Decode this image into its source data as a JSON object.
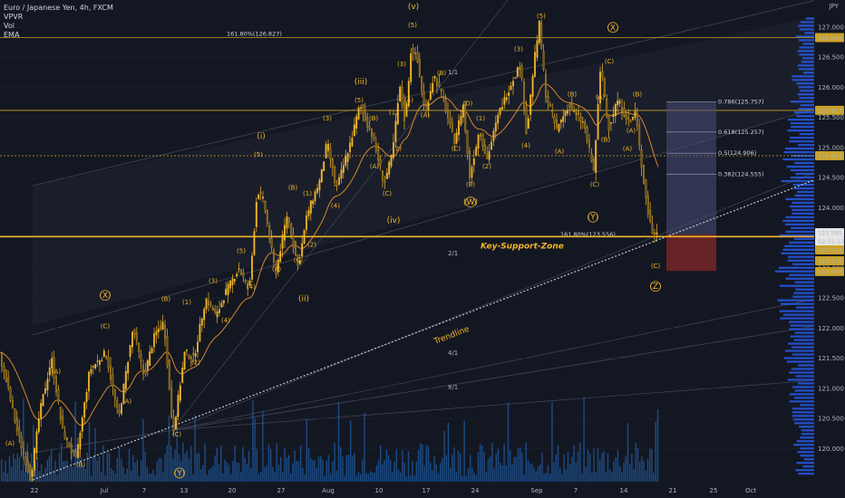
{
  "legend": {
    "symbol": "Euro / Japanese Yen, 4h, FXCM",
    "indicators": [
      "VPVR",
      "Vol",
      "EMA"
    ]
  },
  "currency": "JPY",
  "colors": {
    "background": "#131722",
    "candle": "#f0b429",
    "volume": "#1f5fa8",
    "profile": "#2962ff",
    "ema": "#d4882a",
    "trendline": "#c8c8c8",
    "support": "#f0b429"
  },
  "chart_data": {
    "type": "candlestick",
    "ylim": [
      119.45,
      127.3
    ],
    "y_ticks": [
      120.0,
      120.5,
      121.0,
      121.5,
      122.0,
      122.5,
      123.0,
      123.5,
      124.0,
      124.5,
      125.0,
      125.5,
      126.0,
      126.5,
      127.0
    ],
    "x_ticks": [
      "22",
      "Jul",
      "7",
      "13",
      "20",
      "27",
      "Aug",
      "10",
      "17",
      "24",
      "Sep",
      "7",
      "14",
      "21",
      "25",
      "Oct"
    ],
    "price_tags": [
      {
        "label": "126.826",
        "value": 126.826,
        "style": "gold"
      },
      {
        "label": "125.617",
        "value": 125.617,
        "style": "gold"
      },
      {
        "label": "124.864",
        "value": 124.864,
        "style": "gold"
      },
      {
        "label": "123.621",
        "value": 123.621,
        "style": "plain"
      },
      {
        "label": "123.585",
        "value": 123.585,
        "style": "white"
      },
      {
        "label": "02:55:13",
        "value": 123.44,
        "style": "white"
      },
      {
        "label": "123.523",
        "value": 123.3,
        "style": "gold"
      },
      {
        "label": "123.376",
        "value": 123.12,
        "style": "gold"
      },
      {
        "label": "122.968",
        "value": 122.94,
        "style": "gold"
      }
    ],
    "horizontal_lines": [
      {
        "value": 126.826,
        "label": "161.80%(126.827)"
      },
      {
        "value": 125.617,
        "label": ""
      },
      {
        "value": 124.864,
        "label": ""
      }
    ],
    "support_zone": {
      "value": 123.52,
      "label": "Key-Support-Zone"
    },
    "trendline_label": "Trendline",
    "fib_levels": [
      {
        "label": "0.786(125.757)",
        "value": 125.757
      },
      {
        "label": "0.618(125.257)",
        "value": 125.257
      },
      {
        "label": "0.5(124.906)",
        "value": 124.906
      },
      {
        "label": "0.382(124.555)",
        "value": 124.555
      }
    ],
    "ext_label": "161.80%(123.556)",
    "fan_labels": [
      "1/1",
      "2/1",
      "4/1",
      "8/1"
    ],
    "wave_labels": [
      {
        "t": "(A)",
        "x": 62,
        "p": 121.25
      },
      {
        "t": "(C)",
        "x": 116,
        "p": 122.0
      },
      {
        "t": "(X)",
        "x": 116,
        "p": 122.5,
        "big": 1
      },
      {
        "t": "(A)",
        "x": 140,
        "p": 120.75
      },
      {
        "t": "(B)",
        "x": 183,
        "p": 122.45
      },
      {
        "t": "(C)",
        "x": 195,
        "p": 120.2
      },
      {
        "t": "(Y)",
        "x": 198,
        "p": 119.55,
        "big": 1
      },
      {
        "t": "(B)",
        "x": 89,
        "p": 119.7
      },
      {
        "t": "(A)",
        "x": 11,
        "p": 120.05
      },
      {
        "t": "(1)",
        "x": 206,
        "p": 122.4
      },
      {
        "t": "(2)",
        "x": 216,
        "p": 121.4
      },
      {
        "t": "(3)",
        "x": 235,
        "p": 122.75
      },
      {
        "t": "(4)",
        "x": 249,
        "p": 122.1
      },
      {
        "t": "(5)",
        "x": 266,
        "p": 123.25
      },
      {
        "t": "(4)",
        "x": 277,
        "p": 122.65
      },
      {
        "t": "(5)",
        "x": 285,
        "p": 124.85
      },
      {
        "t": "(i)",
        "x": 288,
        "p": 125.15,
        "big": 1
      },
      {
        "t": "(A)",
        "x": 305,
        "p": 122.95
      },
      {
        "t": "(B)",
        "x": 323,
        "p": 124.3
      },
      {
        "t": "(C)",
        "x": 329,
        "p": 123.1
      },
      {
        "t": "(ii)",
        "x": 335,
        "p": 122.45,
        "big": 1
      },
      {
        "t": "(1)",
        "x": 339,
        "p": 124.2
      },
      {
        "t": "(2)",
        "x": 344,
        "p": 123.35
      },
      {
        "t": "(3)",
        "x": 361,
        "p": 125.45
      },
      {
        "t": "(4)",
        "x": 370,
        "p": 124.0
      },
      {
        "t": "(5)",
        "x": 396,
        "p": 125.75
      },
      {
        "t": "(iii)",
        "x": 398,
        "p": 126.05,
        "big": 1
      },
      {
        "t": "(B)",
        "x": 412,
        "p": 125.45
      },
      {
        "t": "(C)",
        "x": 427,
        "p": 124.2
      },
      {
        "t": "(iv)",
        "x": 434,
        "p": 123.75,
        "big": 1
      },
      {
        "t": "(A)",
        "x": 413,
        "p": 124.65
      },
      {
        "t": "(1)",
        "x": 434,
        "p": 125.55
      },
      {
        "t": "(2)",
        "x": 438,
        "p": 124.95
      },
      {
        "t": "(3)",
        "x": 443,
        "p": 126.35
      },
      {
        "t": "(4)",
        "x": 451,
        "p": 125.75
      },
      {
        "t": "(5)",
        "x": 455,
        "p": 127.0
      },
      {
        "t": "(v)",
        "x": 456,
        "p": 127.3,
        "big": 1
      },
      {
        "t": "(A)",
        "x": 469,
        "p": 125.5
      },
      {
        "t": "(B)",
        "x": 487,
        "p": 126.2
      },
      {
        "t": "(C)",
        "x": 503,
        "p": 124.95
      },
      {
        "t": "(D)",
        "x": 516,
        "p": 125.7
      },
      {
        "t": "(E)",
        "x": 519,
        "p": 124.35
      },
      {
        "t": "(W)",
        "x": 519,
        "p": 124.05,
        "big": 1
      },
      {
        "t": "(1)",
        "x": 530,
        "p": 125.45
      },
      {
        "t": "(2)",
        "x": 537,
        "p": 124.65
      },
      {
        "t": "(3)",
        "x": 572,
        "p": 126.6
      },
      {
        "t": "(4)",
        "x": 580,
        "p": 125.0
      },
      {
        "t": "(5)",
        "x": 597,
        "p": 127.15
      },
      {
        "t": "(A)",
        "x": 617,
        "p": 124.9
      },
      {
        "t": "(B)",
        "x": 631,
        "p": 125.85
      },
      {
        "t": "(C)",
        "x": 656,
        "p": 124.35
      },
      {
        "t": "(A)",
        "x": 662,
        "p": 125.8
      },
      {
        "t": "(B)",
        "x": 668,
        "p": 125.1
      },
      {
        "t": "(C)",
        "x": 672,
        "p": 126.4
      },
      {
        "t": "(X)",
        "x": 676,
        "p": 126.95,
        "big": 1
      },
      {
        "t": "(A)",
        "x": 696,
        "p": 125.25
      },
      {
        "t": "(B)",
        "x": 703,
        "p": 125.85
      },
      {
        "t": "(C)",
        "x": 723,
        "p": 123.0
      },
      {
        "t": "(Z)",
        "x": 723,
        "p": 122.65,
        "big": 1
      },
      {
        "t": "(Y)",
        "x": 654,
        "p": 123.8,
        "big": 1
      },
      {
        "t": "(A)",
        "x": 692,
        "p": 124.95
      }
    ]
  }
}
